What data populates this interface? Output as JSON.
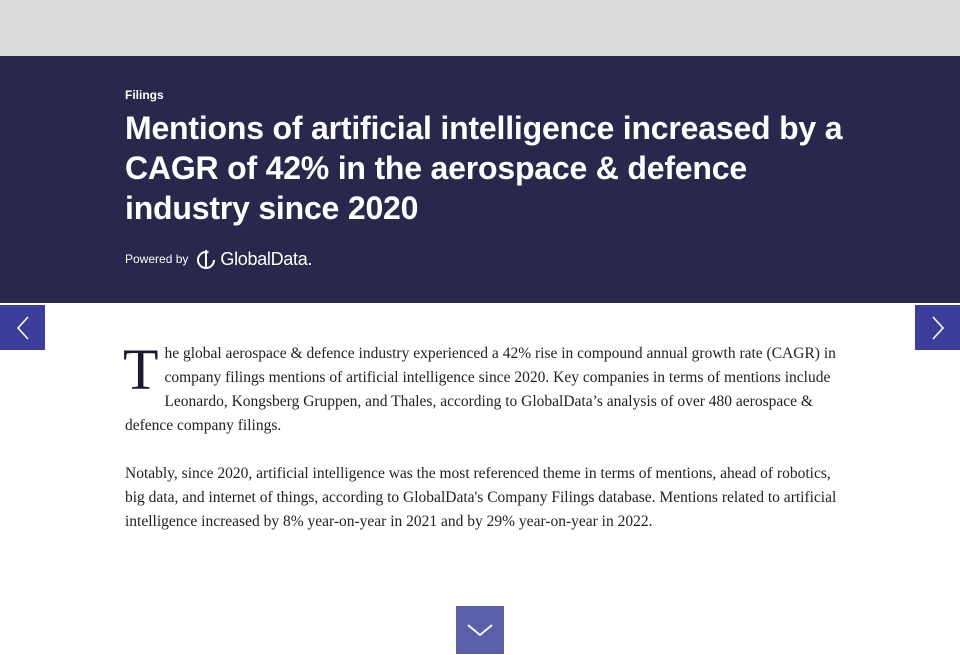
{
  "header": {
    "category": "Filings",
    "title": "Mentions of artificial intelligence increased by a CAGR of 42% in the aerospace & defence industry since 2020",
    "powered_by": "Powered by",
    "brand": "GlobalData."
  },
  "article": {
    "drop_cap": "T",
    "paragraphs": [
      "he global aerospace & defence industry experienced a 42% rise in compound annual growth rate (CAGR) in company filings mentions of artificial intelligence since 2020. Key companies in terms of mentions include Leonardo, Kongsberg Gruppen, and Thales, according to GlobalData’s analysis of over 480 aerospace & defence company filings.",
      "Notably, since 2020, artificial intelligence was the most referenced theme in terms of mentions, ahead of robotics, big data, and internet of things, according to GlobalData's Company Filings database. Mentions related to artificial intelligence increased by 8% year-on-year in 2021 and by 29% year-on-year in 2022."
    ]
  },
  "colors": {
    "hero_bg": "#27284b",
    "nav_bg": "#3b3d9a",
    "scroll_bg": "#5b5ea8"
  }
}
